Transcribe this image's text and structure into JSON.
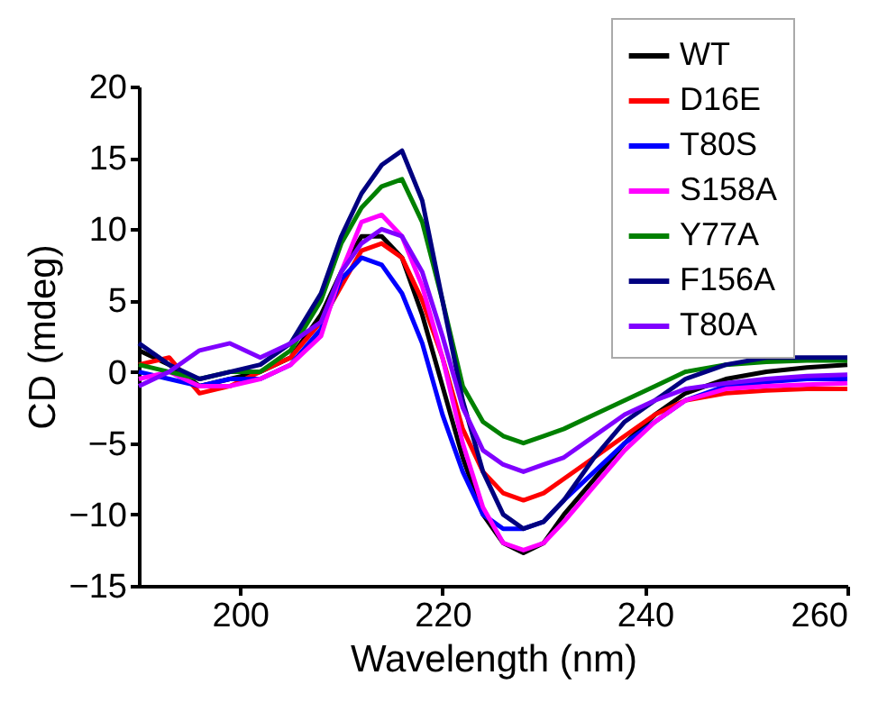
{
  "chart_data": {
    "type": "line",
    "xlabel": "Wavelength (nm)",
    "ylabel": "CD (mdeg)",
    "xlim": [
      190,
      260
    ],
    "xticks": [
      200,
      220,
      240,
      260
    ],
    "ylim": [
      -15,
      20
    ],
    "yticks": [
      -15,
      -10,
      -5,
      0,
      5,
      10,
      15,
      20
    ],
    "grid": false,
    "legend": "top right",
    "line_style": "solid",
    "marker": "none",
    "x": [
      190,
      193,
      196,
      199,
      202,
      205,
      208,
      210,
      212,
      214,
      216,
      218,
      220,
      222,
      224,
      226,
      228,
      230,
      232,
      235,
      238,
      241,
      244,
      248,
      252,
      256,
      260
    ],
    "series": [
      {
        "name": "WT",
        "color": "#000000",
        "values": [
          1.5,
          0.5,
          -1,
          -0.5,
          0,
          1,
          4,
          7,
          9.5,
          9.5,
          8,
          4,
          -1,
          -6,
          -10,
          -12,
          -12.7,
          -12,
          -10,
          -7.5,
          -5,
          -3,
          -1.5,
          -0.5,
          0,
          0.3,
          0.5
        ]
      },
      {
        "name": "D16E",
        "color": "#ff0000",
        "values": [
          0.5,
          1,
          -1.5,
          -1,
          0,
          1,
          3.5,
          6,
          8.5,
          9,
          8,
          5,
          1,
          -4,
          -7,
          -8.5,
          -9,
          -8.5,
          -7.5,
          -6,
          -4.5,
          -3,
          -2,
          -1.5,
          -1.3,
          -1.2,
          -1.2
        ]
      },
      {
        "name": "T80S",
        "color": "#0000ff",
        "values": [
          0,
          -0.5,
          -1,
          -0.5,
          -0.5,
          0.5,
          3,
          6.5,
          8,
          7.5,
          5.5,
          2,
          -3,
          -7,
          -10,
          -11,
          -11,
          -10.5,
          -9,
          -7,
          -5,
          -3.5,
          -2,
          -1,
          -0.7,
          -0.5,
          -0.5
        ]
      },
      {
        "name": "S158A",
        "color": "#ff00ff",
        "values": [
          -0.5,
          0,
          -1,
          -1,
          -0.5,
          0.5,
          2.5,
          7,
          10.5,
          11,
          9.5,
          6,
          1,
          -5,
          -9.5,
          -12,
          -12.5,
          -12,
          -10.5,
          -8,
          -5.5,
          -3.5,
          -2,
          -1.2,
          -1,
          -0.9,
          -0.8
        ]
      },
      {
        "name": "Y77A",
        "color": "#008000",
        "values": [
          0.5,
          0,
          -0.5,
          0,
          0,
          1.5,
          5,
          9,
          11.5,
          13,
          13.5,
          10.5,
          5,
          -1,
          -3.5,
          -4.5,
          -5,
          -4.5,
          -4,
          -3,
          -2,
          -1,
          0,
          0.5,
          0.7,
          0.8,
          0.8
        ]
      },
      {
        "name": "F156A",
        "color": "#000080",
        "values": [
          2,
          0.5,
          -0.5,
          0,
          0.5,
          2,
          5.5,
          9.5,
          12.5,
          14.5,
          15.5,
          12,
          5,
          -2,
          -7,
          -10,
          -11,
          -10.5,
          -9,
          -6,
          -3.5,
          -2,
          -0.5,
          0.5,
          1,
          1,
          1
        ]
      },
      {
        "name": "T80A",
        "color": "#8000ff",
        "values": [
          -1,
          0,
          1.5,
          2,
          1,
          2,
          3.5,
          7,
          9,
          10,
          9.5,
          7,
          2.5,
          -2.5,
          -5.5,
          -6.5,
          -7,
          -6.5,
          -6,
          -4.5,
          -3,
          -2,
          -1.2,
          -0.8,
          -0.5,
          -0.3,
          -0.2
        ]
      }
    ]
  }
}
